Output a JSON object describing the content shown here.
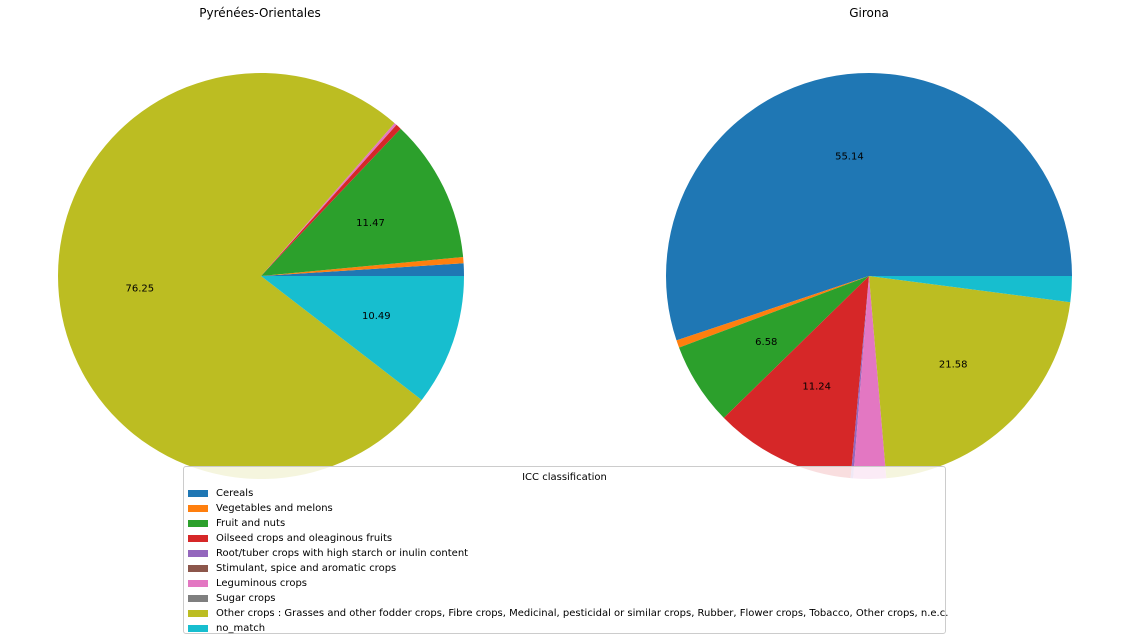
{
  "chart_data": [
    {
      "type": "pie",
      "title": "Pyrénées-Orientales",
      "start_angle": "0 (3 o'clock), counter-clockwise",
      "slices": [
        {
          "category": "Cereals",
          "value": 1.0,
          "label": ""
        },
        {
          "category": "Vegetables and melons",
          "value": 0.5,
          "label": ""
        },
        {
          "category": "Fruit and nuts",
          "value": 11.47,
          "label": "11.47"
        },
        {
          "category": "Oilseed crops and oleaginous fruits",
          "value": 0.45,
          "label": ""
        },
        {
          "category": "Root/tuber crops with high starch or inulin content",
          "value": 0.0,
          "label": ""
        },
        {
          "category": "Stimulant, spice and aromatic crops",
          "value": 0.0,
          "label": ""
        },
        {
          "category": "Leguminous crops",
          "value": 0.2,
          "label": ""
        },
        {
          "category": "Sugar crops",
          "value": 0.0,
          "label": ""
        },
        {
          "category": "Other crops : Grasses and other fodder crops, Fibre crops, Medicinal, pesticidal or similar crops, Rubber, Flower crops, Tobacco, Other crops, n.e.c.",
          "value": 76.25,
          "label": "76.25"
        },
        {
          "category": "no_match",
          "value": 10.49,
          "label": "10.49"
        }
      ]
    },
    {
      "type": "pie",
      "title": "Girona",
      "start_angle": "0 (3 o'clock), counter-clockwise",
      "slices": [
        {
          "category": "Cereals",
          "value": 55.14,
          "label": "55.14"
        },
        {
          "category": "Vegetables and melons",
          "value": 0.6,
          "label": ""
        },
        {
          "category": "Fruit and nuts",
          "value": 6.58,
          "label": "6.58"
        },
        {
          "category": "Oilseed crops and oleaginous fruits",
          "value": 11.24,
          "label": "11.24"
        },
        {
          "category": "Root/tuber crops with high starch or inulin content",
          "value": 0.2,
          "label": ""
        },
        {
          "category": "Stimulant, spice and aromatic crops",
          "value": 0.0,
          "label": ""
        },
        {
          "category": "Leguminous crops",
          "value": 2.6,
          "label": ""
        },
        {
          "category": "Sugar crops",
          "value": 0.0,
          "label": ""
        },
        {
          "category": "Other crops : Grasses and other fodder crops, Fibre crops, Medicinal, pesticidal or similar crops, Rubber, Flower crops, Tobacco, Other crops, n.e.c.",
          "value": 21.58,
          "label": "21.58"
        },
        {
          "category": "no_match",
          "value": 2.06,
          "label": ""
        }
      ]
    }
  ],
  "legend": {
    "title": "ICC classification",
    "placement": "lower-center",
    "items": [
      {
        "label": "Cereals",
        "color": "#1f77b4"
      },
      {
        "label": "Vegetables and melons",
        "color": "#ff7f0e"
      },
      {
        "label": "Fruit and nuts",
        "color": "#2ca02c"
      },
      {
        "label": "Oilseed crops and oleaginous fruits",
        "color": "#d62728"
      },
      {
        "label": "Root/tuber crops with high starch or inulin content",
        "color": "#9467bd"
      },
      {
        "label": "Stimulant, spice and aromatic crops",
        "color": "#8c564b"
      },
      {
        "label": "Leguminous crops",
        "color": "#e377c2"
      },
      {
        "label": "Sugar crops",
        "color": "#7f7f7f"
      },
      {
        "label": "Other crops : Grasses and other fodder crops, Fibre crops, Medicinal, pesticidal or similar crops, Rubber, Flower crops, Tobacco, Other crops, n.e.c.",
        "color": "#bcbd22"
      },
      {
        "label": "no_match",
        "color": "#17becf"
      }
    ]
  }
}
